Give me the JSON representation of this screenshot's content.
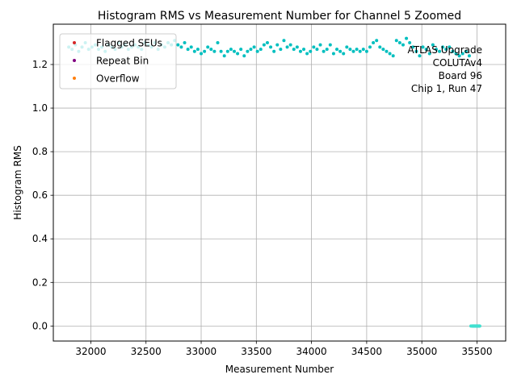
{
  "chart_data": {
    "type": "scatter",
    "title": "Histogram RMS vs Measurement Number for Channel 5 Zoomed",
    "xlabel": "Measurement Number",
    "ylabel": "Histogram RMS",
    "xlim": [
      31660,
      35760
    ],
    "ylim": [
      -0.069,
      1.385
    ],
    "xticks": [
      32000,
      32500,
      33000,
      33500,
      34000,
      34500,
      35000,
      35500
    ],
    "yticks": [
      0.0,
      0.2,
      0.4,
      0.6,
      0.8,
      1.0,
      1.2
    ],
    "ytick_labels": [
      "0.0",
      "0.2",
      "0.4",
      "0.6",
      "0.8",
      "1.0",
      "1.2"
    ],
    "grid": true,
    "legend_position": "top-left",
    "legend": [
      {
        "label": "Flagged SEUs",
        "color": "#d62728"
      },
      {
        "label": "Repeat Bin",
        "color": "#800080"
      },
      {
        "label": "Overflow",
        "color": "#ff7f0e"
      }
    ],
    "annotation_lines": [
      "ATLAS Upgrade",
      "COLUTAv4",
      "Board 96",
      "Chip 1, Run 47"
    ],
    "series": [
      {
        "color": "#00bfbf",
        "x": [
          31800,
          31830,
          31860,
          31890,
          31920,
          31950,
          31980,
          32010,
          32040,
          32070,
          32100,
          32130,
          32160,
          32190,
          32220,
          32250,
          32280,
          32310,
          32340,
          32370,
          32400,
          32430,
          32460,
          32490,
          32520,
          32550,
          32580,
          32610,
          32640,
          32670,
          32700,
          32730,
          32760,
          32790,
          32820,
          32850,
          32880,
          32910,
          32940,
          32970,
          33000,
          33030,
          33060,
          33090,
          33120,
          33150,
          33180,
          33210,
          33240,
          33270,
          33300,
          33330,
          33360,
          33390,
          33420,
          33450,
          33480,
          33510,
          33540,
          33570,
          33600,
          33630,
          33660,
          33690,
          33720,
          33750,
          33780,
          33810,
          33840,
          33870,
          33900,
          33930,
          33960,
          33990,
          34020,
          34050,
          34080,
          34110,
          34140,
          34170,
          34200,
          34230,
          34260,
          34290,
          34320,
          34350,
          34380,
          34410,
          34440,
          34470,
          34500,
          34530,
          34560,
          34590,
          34620,
          34650,
          34680,
          34710,
          34740,
          34770,
          34800,
          34830,
          34860,
          34890,
          34920,
          34950,
          34980,
          35010,
          35040,
          35070,
          35100,
          35130,
          35160,
          35190,
          35220,
          35250,
          35280,
          35310,
          35340,
          35370,
          35400,
          35430,
          35460,
          35470,
          35480,
          35490,
          35500,
          35510,
          35520
        ],
        "y": [
          1.28,
          1.27,
          1.29,
          1.26,
          1.28,
          1.3,
          1.27,
          1.28,
          1.29,
          1.27,
          1.28,
          1.26,
          1.29,
          1.28,
          1.27,
          1.3,
          1.28,
          1.29,
          1.27,
          1.28,
          1.29,
          1.28,
          1.27,
          1.3,
          1.29,
          1.28,
          1.3,
          1.27,
          1.29,
          1.28,
          1.3,
          1.29,
          1.31,
          1.29,
          1.28,
          1.3,
          1.27,
          1.28,
          1.26,
          1.27,
          1.25,
          1.26,
          1.28,
          1.27,
          1.26,
          1.3,
          1.26,
          1.24,
          1.26,
          1.27,
          1.26,
          1.25,
          1.27,
          1.24,
          1.26,
          1.27,
          1.28,
          1.26,
          1.27,
          1.29,
          1.3,
          1.28,
          1.26,
          1.29,
          1.27,
          1.31,
          1.28,
          1.29,
          1.27,
          1.28,
          1.26,
          1.27,
          1.25,
          1.26,
          1.28,
          1.27,
          1.29,
          1.26,
          1.27,
          1.29,
          1.25,
          1.27,
          1.26,
          1.25,
          1.28,
          1.27,
          1.26,
          1.27,
          1.26,
          1.27,
          1.26,
          1.28,
          1.3,
          1.31,
          1.28,
          1.27,
          1.26,
          1.25,
          1.24,
          1.31,
          1.3,
          1.29,
          1.32,
          1.3,
          1.28,
          1.26,
          1.24,
          1.28,
          1.27,
          1.25,
          1.29,
          1.27,
          1.26,
          1.28,
          1.27,
          1.28,
          1.26,
          1.25,
          1.24,
          1.25,
          1.26,
          1.24,
          0.0,
          0.0,
          0.0,
          0.0,
          0.0,
          0.0,
          0.0
        ]
      },
      {
        "color": "#40e0d0",
        "x": [
          35445,
          35455,
          35465,
          35475,
          35485,
          35495,
          35505,
          35515,
          35525
        ],
        "y": [
          0.0,
          0.0,
          0.0,
          0.0,
          0.0,
          0.0,
          0.0,
          0.0,
          0.0
        ]
      }
    ]
  }
}
